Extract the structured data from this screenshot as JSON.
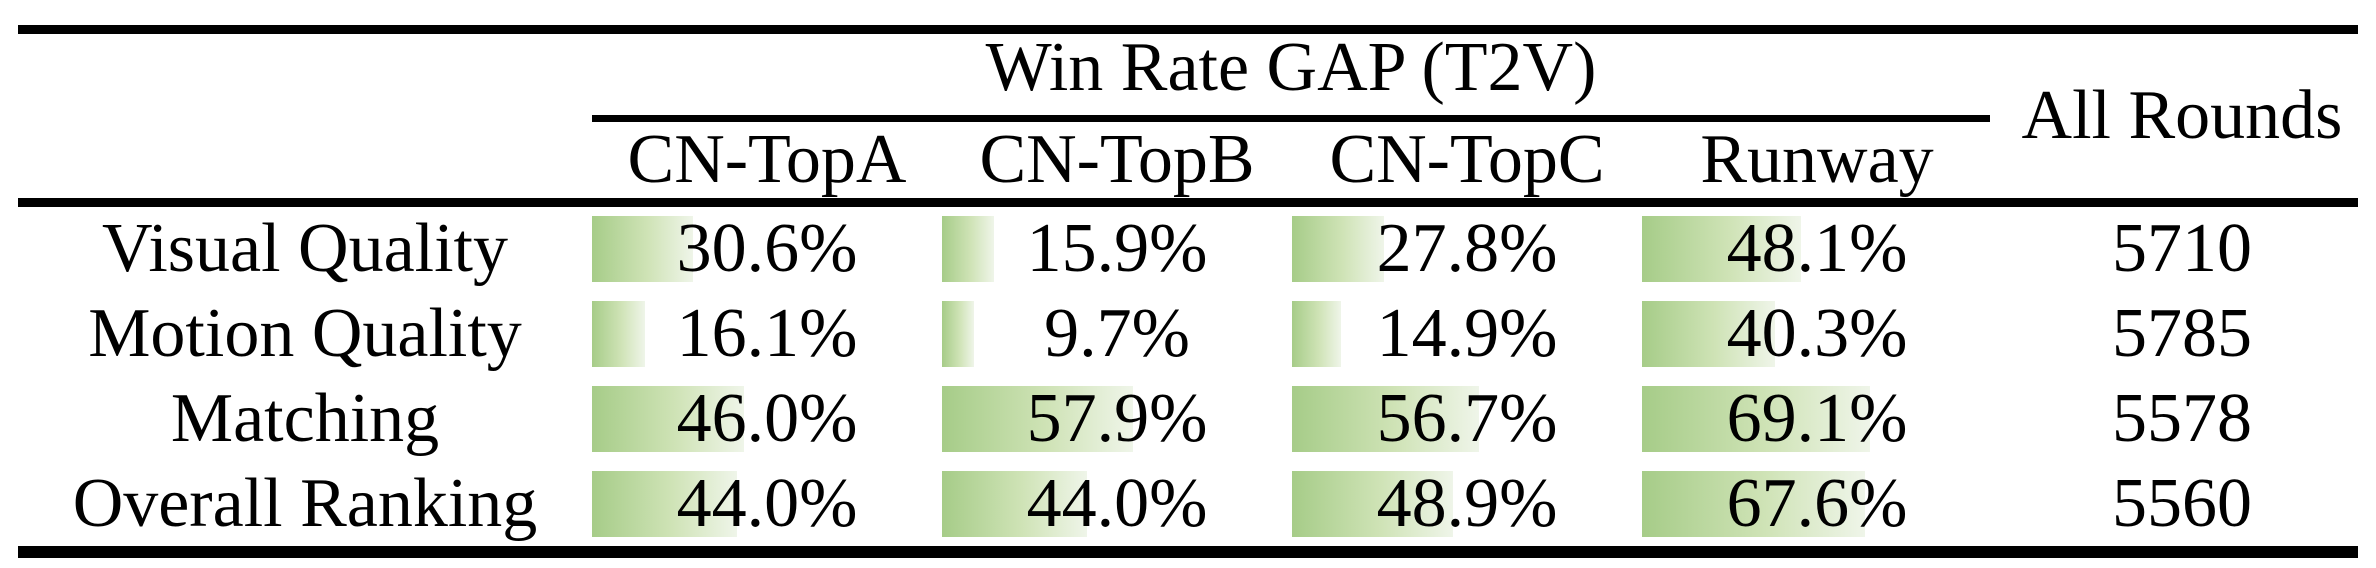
{
  "figure": {
    "group_header": "Win Rate GAP (T2V)",
    "all_rounds_label": "All Rounds",
    "columns": [
      "CN-TopA",
      "CN-TopB",
      "CN-TopC",
      "Runway"
    ],
    "rows": [
      {
        "label": "Visual Quality",
        "cells": [
          {
            "text": "30.6%",
            "value": 30.6
          },
          {
            "text": "15.9%",
            "value": 15.9
          },
          {
            "text": "27.8%",
            "value": 27.8
          },
          {
            "text": "48.1%",
            "value": 48.1
          }
        ],
        "all_rounds": "5710"
      },
      {
        "label": "Motion Quality",
        "cells": [
          {
            "text": "16.1%",
            "value": 16.1
          },
          {
            "text": "9.7%",
            "value": 9.7
          },
          {
            "text": "14.9%",
            "value": 14.9
          },
          {
            "text": "40.3%",
            "value": 40.3
          }
        ],
        "all_rounds": "5785"
      },
      {
        "label": "Matching",
        "cells": [
          {
            "text": "46.0%",
            "value": 46.0
          },
          {
            "text": "57.9%",
            "value": 57.9
          },
          {
            "text": "56.7%",
            "value": 56.7
          },
          {
            "text": "69.1%",
            "value": 69.1
          }
        ],
        "all_rounds": "5578"
      },
      {
        "label": "Overall Ranking",
        "cells": [
          {
            "text": "44.0%",
            "value": 44.0
          },
          {
            "text": "44.0%",
            "value": 44.0
          },
          {
            "text": "48.9%",
            "value": 48.9
          },
          {
            "text": "67.6%",
            "value": 67.6
          }
        ],
        "all_rounds": "5560"
      }
    ],
    "colors": {
      "bar_start": "#a6cc88",
      "bar_mid": "#cfe3b6",
      "bar_end": "#eff5e9",
      "rule": "#000000",
      "text": "#000000",
      "background": "#ffffff"
    }
  },
  "chart_data": {
    "type": "table",
    "title": "Win Rate GAP (T2V)",
    "row_categories": [
      "Visual Quality",
      "Motion Quality",
      "Matching",
      "Overall Ranking"
    ],
    "series": [
      {
        "name": "CN-TopA",
        "values": [
          30.6,
          16.1,
          46.0,
          44.0
        ]
      },
      {
        "name": "CN-TopB",
        "values": [
          15.9,
          9.7,
          57.9,
          44.0
        ]
      },
      {
        "name": "CN-TopC",
        "values": [
          27.8,
          14.9,
          56.7,
          48.9
        ]
      },
      {
        "name": "Runway",
        "values": [
          48.1,
          40.3,
          69.1,
          67.6
        ]
      }
    ],
    "all_rounds_column": {
      "name": "All Rounds",
      "values": [
        5710,
        5785,
        5578,
        5560
      ]
    },
    "unit": "%",
    "bar_scale_note": "in-cell gradient data bars proportional to percent value, 100% = full column width"
  }
}
